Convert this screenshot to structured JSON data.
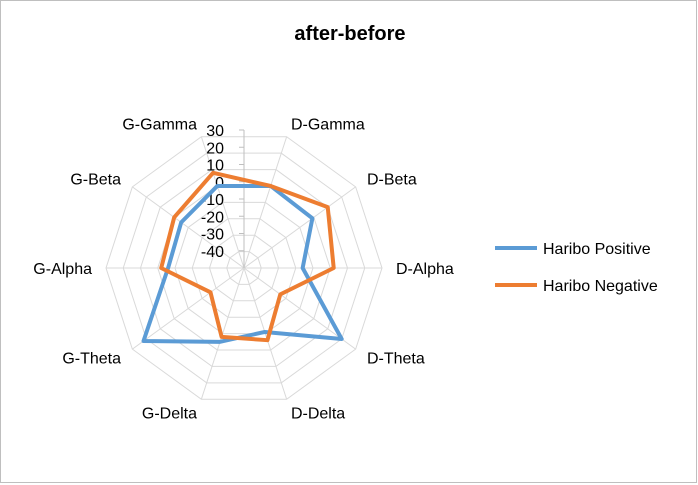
{
  "chart_data": {
    "type": "radar",
    "title": "after-before",
    "categories": [
      "D-Gamma",
      "D-Beta",
      "D-Alpha",
      "D-Theta",
      "D-Delta",
      "G-Delta",
      "G-Theta",
      "G-Alpha",
      "G-Beta",
      "G-Gamma"
    ],
    "top_axis_label": "",
    "r_ticks": [
      -40,
      -30,
      -20,
      -10,
      0,
      10,
      20,
      30
    ],
    "rlim": [
      -50,
      30
    ],
    "grid": true,
    "legend_position": "right",
    "series": [
      {
        "name": "Haribo Positive",
        "color": "#5b9bd5",
        "values": [
          0,
          -1,
          -16,
          20,
          -11,
          -5,
          22,
          -6,
          -5,
          0
        ]
      },
      {
        "name": "Haribo Negative",
        "color": "#ed7d31",
        "values": [
          0,
          10,
          2,
          -24,
          -6,
          -8,
          -26,
          -2,
          0,
          8
        ]
      }
    ]
  }
}
